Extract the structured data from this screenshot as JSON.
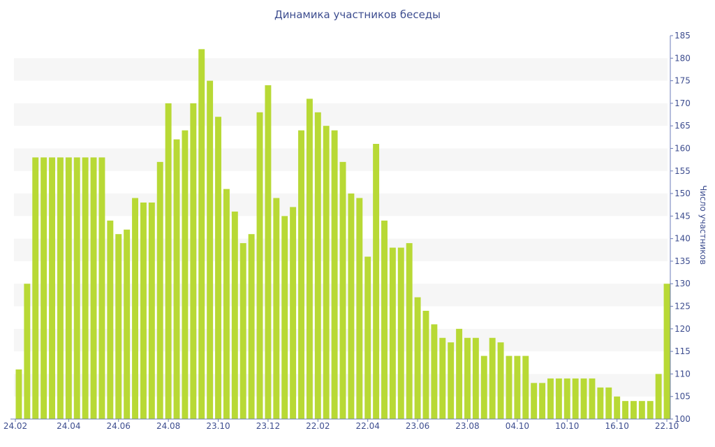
{
  "chart_data": {
    "type": "bar",
    "title": "Динамика участников беседы",
    "xlabel": "",
    "ylabel": "Число участников",
    "ylim": [
      100,
      185
    ],
    "y_ticks": [
      100,
      105,
      110,
      115,
      120,
      125,
      130,
      135,
      140,
      145,
      150,
      155,
      160,
      165,
      170,
      175,
      180,
      185
    ],
    "y_axis_side": "right",
    "grid": "horizontal bands",
    "x_tick_labels": [
      "24.02",
      "24.04",
      "24.06",
      "24.08",
      "23.10",
      "23.12",
      "22.02",
      "22.04",
      "23.06",
      "23.08",
      "04.10",
      "10.10",
      "16.10",
      "22.10"
    ],
    "x_tick_bar_index": [
      0,
      6,
      12,
      18,
      24,
      30,
      36,
      42,
      48,
      54,
      60,
      66,
      72,
      78
    ],
    "values": [
      111,
      130,
      158,
      158,
      158,
      158,
      158,
      158,
      158,
      158,
      158,
      144,
      141,
      142,
      149,
      148,
      148,
      157,
      170,
      162,
      164,
      170,
      182,
      175,
      167,
      151,
      146,
      139,
      141,
      168,
      174,
      149,
      145,
      147,
      164,
      171,
      168,
      165,
      164,
      157,
      150,
      149,
      136,
      161,
      144,
      138,
      138,
      139,
      127,
      124,
      121,
      118,
      117,
      120,
      118,
      118,
      114,
      118,
      117,
      114,
      114,
      114,
      108,
      108,
      109,
      109,
      109,
      109,
      109,
      109,
      107,
      107,
      105,
      104,
      104,
      104,
      104,
      110,
      130
    ],
    "bar_color": "#b8d935",
    "band_color": "#f6f6f6",
    "text_color": "#3d4d8f"
  }
}
